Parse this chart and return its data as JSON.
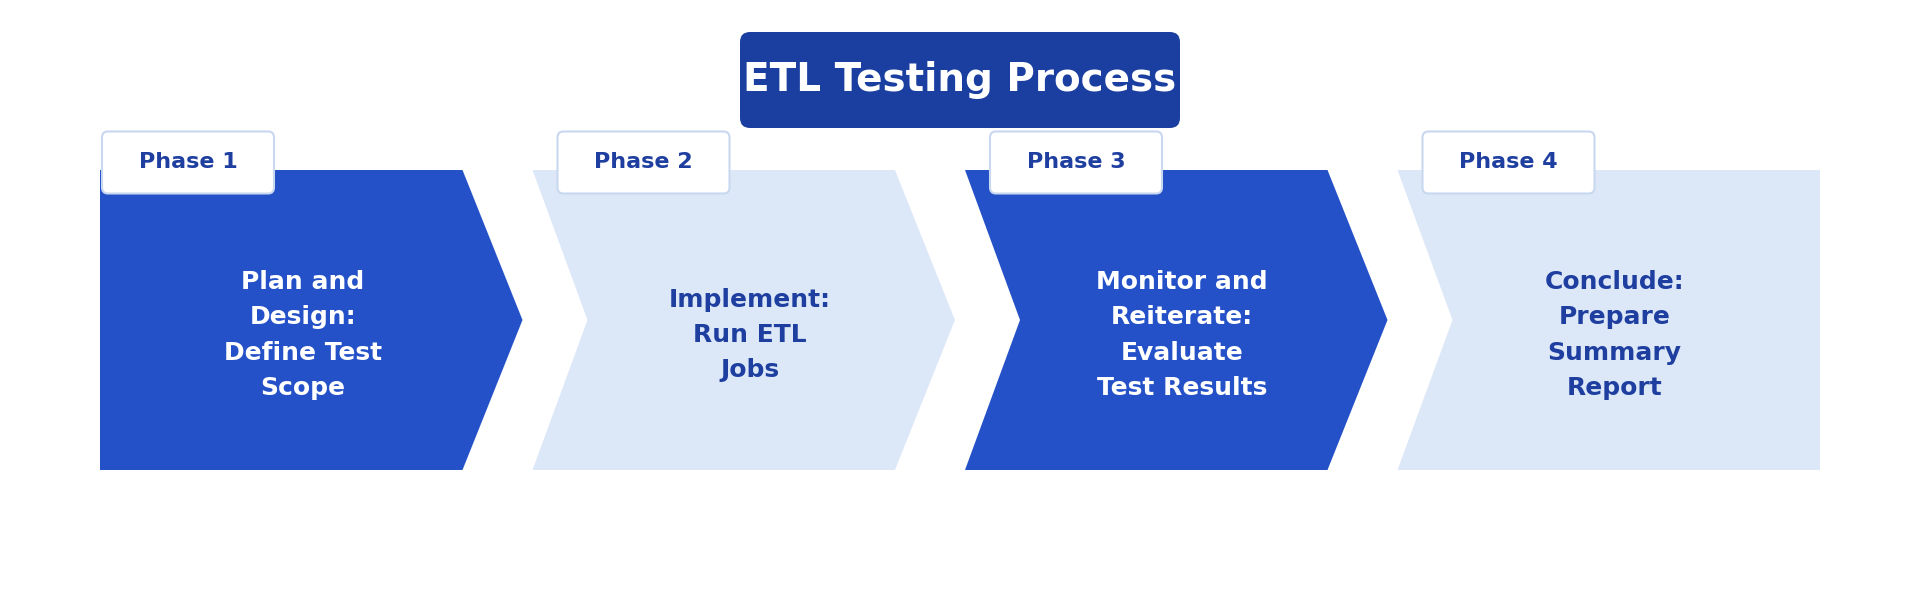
{
  "title": "ETL Testing Process",
  "title_bg_color": "#1a3fa0",
  "title_text_color": "#ffffff",
  "background_color": "#ffffff",
  "phases": [
    {
      "phase_label": "Phase 1",
      "text": "Plan and\nDesign:\nDefine Test\nScope",
      "arrow_color": "#2451c8",
      "text_color": "#ffffff",
      "label_color": "#1e3fa0",
      "is_dark": true
    },
    {
      "phase_label": "Phase 2",
      "text": "Implement:\nRun ETL\nJobs",
      "arrow_color": "#dce8f8",
      "text_color": "#1e3fa0",
      "label_color": "#1e3fa0",
      "is_dark": false
    },
    {
      "phase_label": "Phase 3",
      "text": "Monitor and\nReiterate:\nEvaluate\nTest Results",
      "arrow_color": "#2451c8",
      "text_color": "#ffffff",
      "label_color": "#1e3fa0",
      "is_dark": true
    },
    {
      "phase_label": "Phase 4",
      "text": "Conclude:\nPrepare\nSummary\nReport",
      "arrow_color": "#dce8f8",
      "text_color": "#1e3fa0",
      "label_color": "#1e3fa0",
      "is_dark": false
    }
  ],
  "figsize": [
    19.2,
    6.0
  ],
  "dpi": 100
}
